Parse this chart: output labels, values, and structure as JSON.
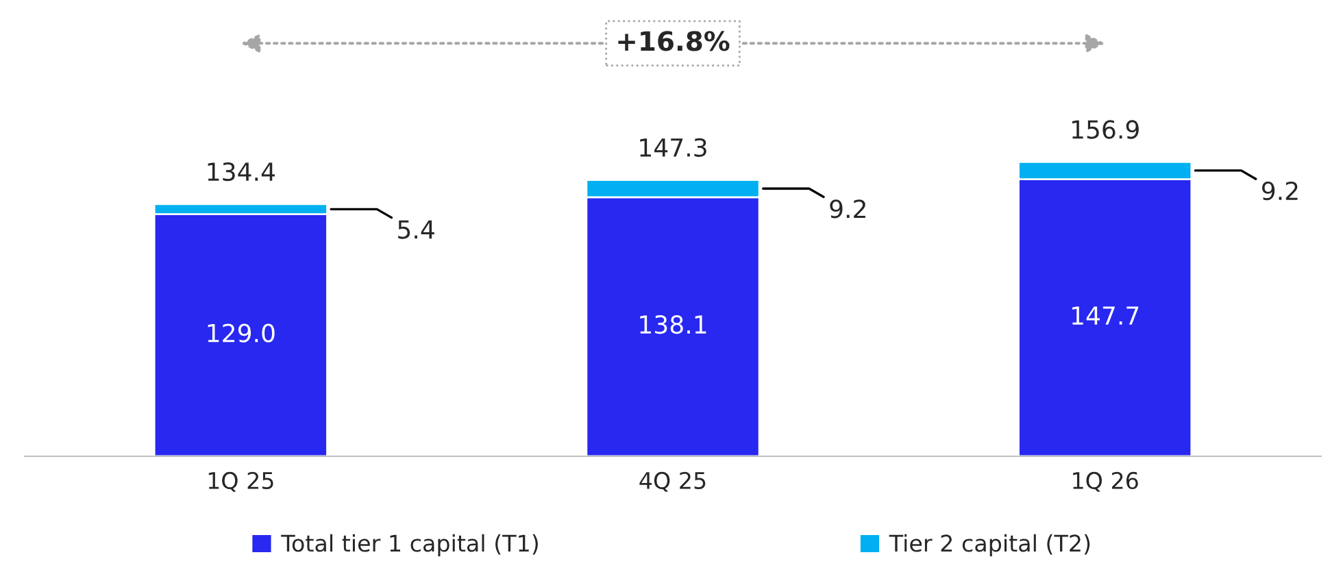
{
  "chart_data": {
    "type": "bar",
    "stacked": true,
    "categories": [
      "1Q 25",
      "4Q 25",
      "1Q 26"
    ],
    "series": [
      {
        "name": "Total tier 1 capital (T1)",
        "color": "#2828f0",
        "values": [
          129.0,
          138.1,
          147.7
        ],
        "value_labels": [
          "129.0",
          "138.1",
          "147.7"
        ]
      },
      {
        "name": "Tier 2 capital (T2)",
        "color": "#00b0f0",
        "values": [
          5.4,
          9.2,
          9.2
        ]
      }
    ],
    "data_labels": true,
    "totals": [
      "134.4",
      "147.3",
      "156.9"
    ],
    "annotations": [
      "+16.8%"
    ],
    "legend": "bottom",
    "grid": false
  }
}
